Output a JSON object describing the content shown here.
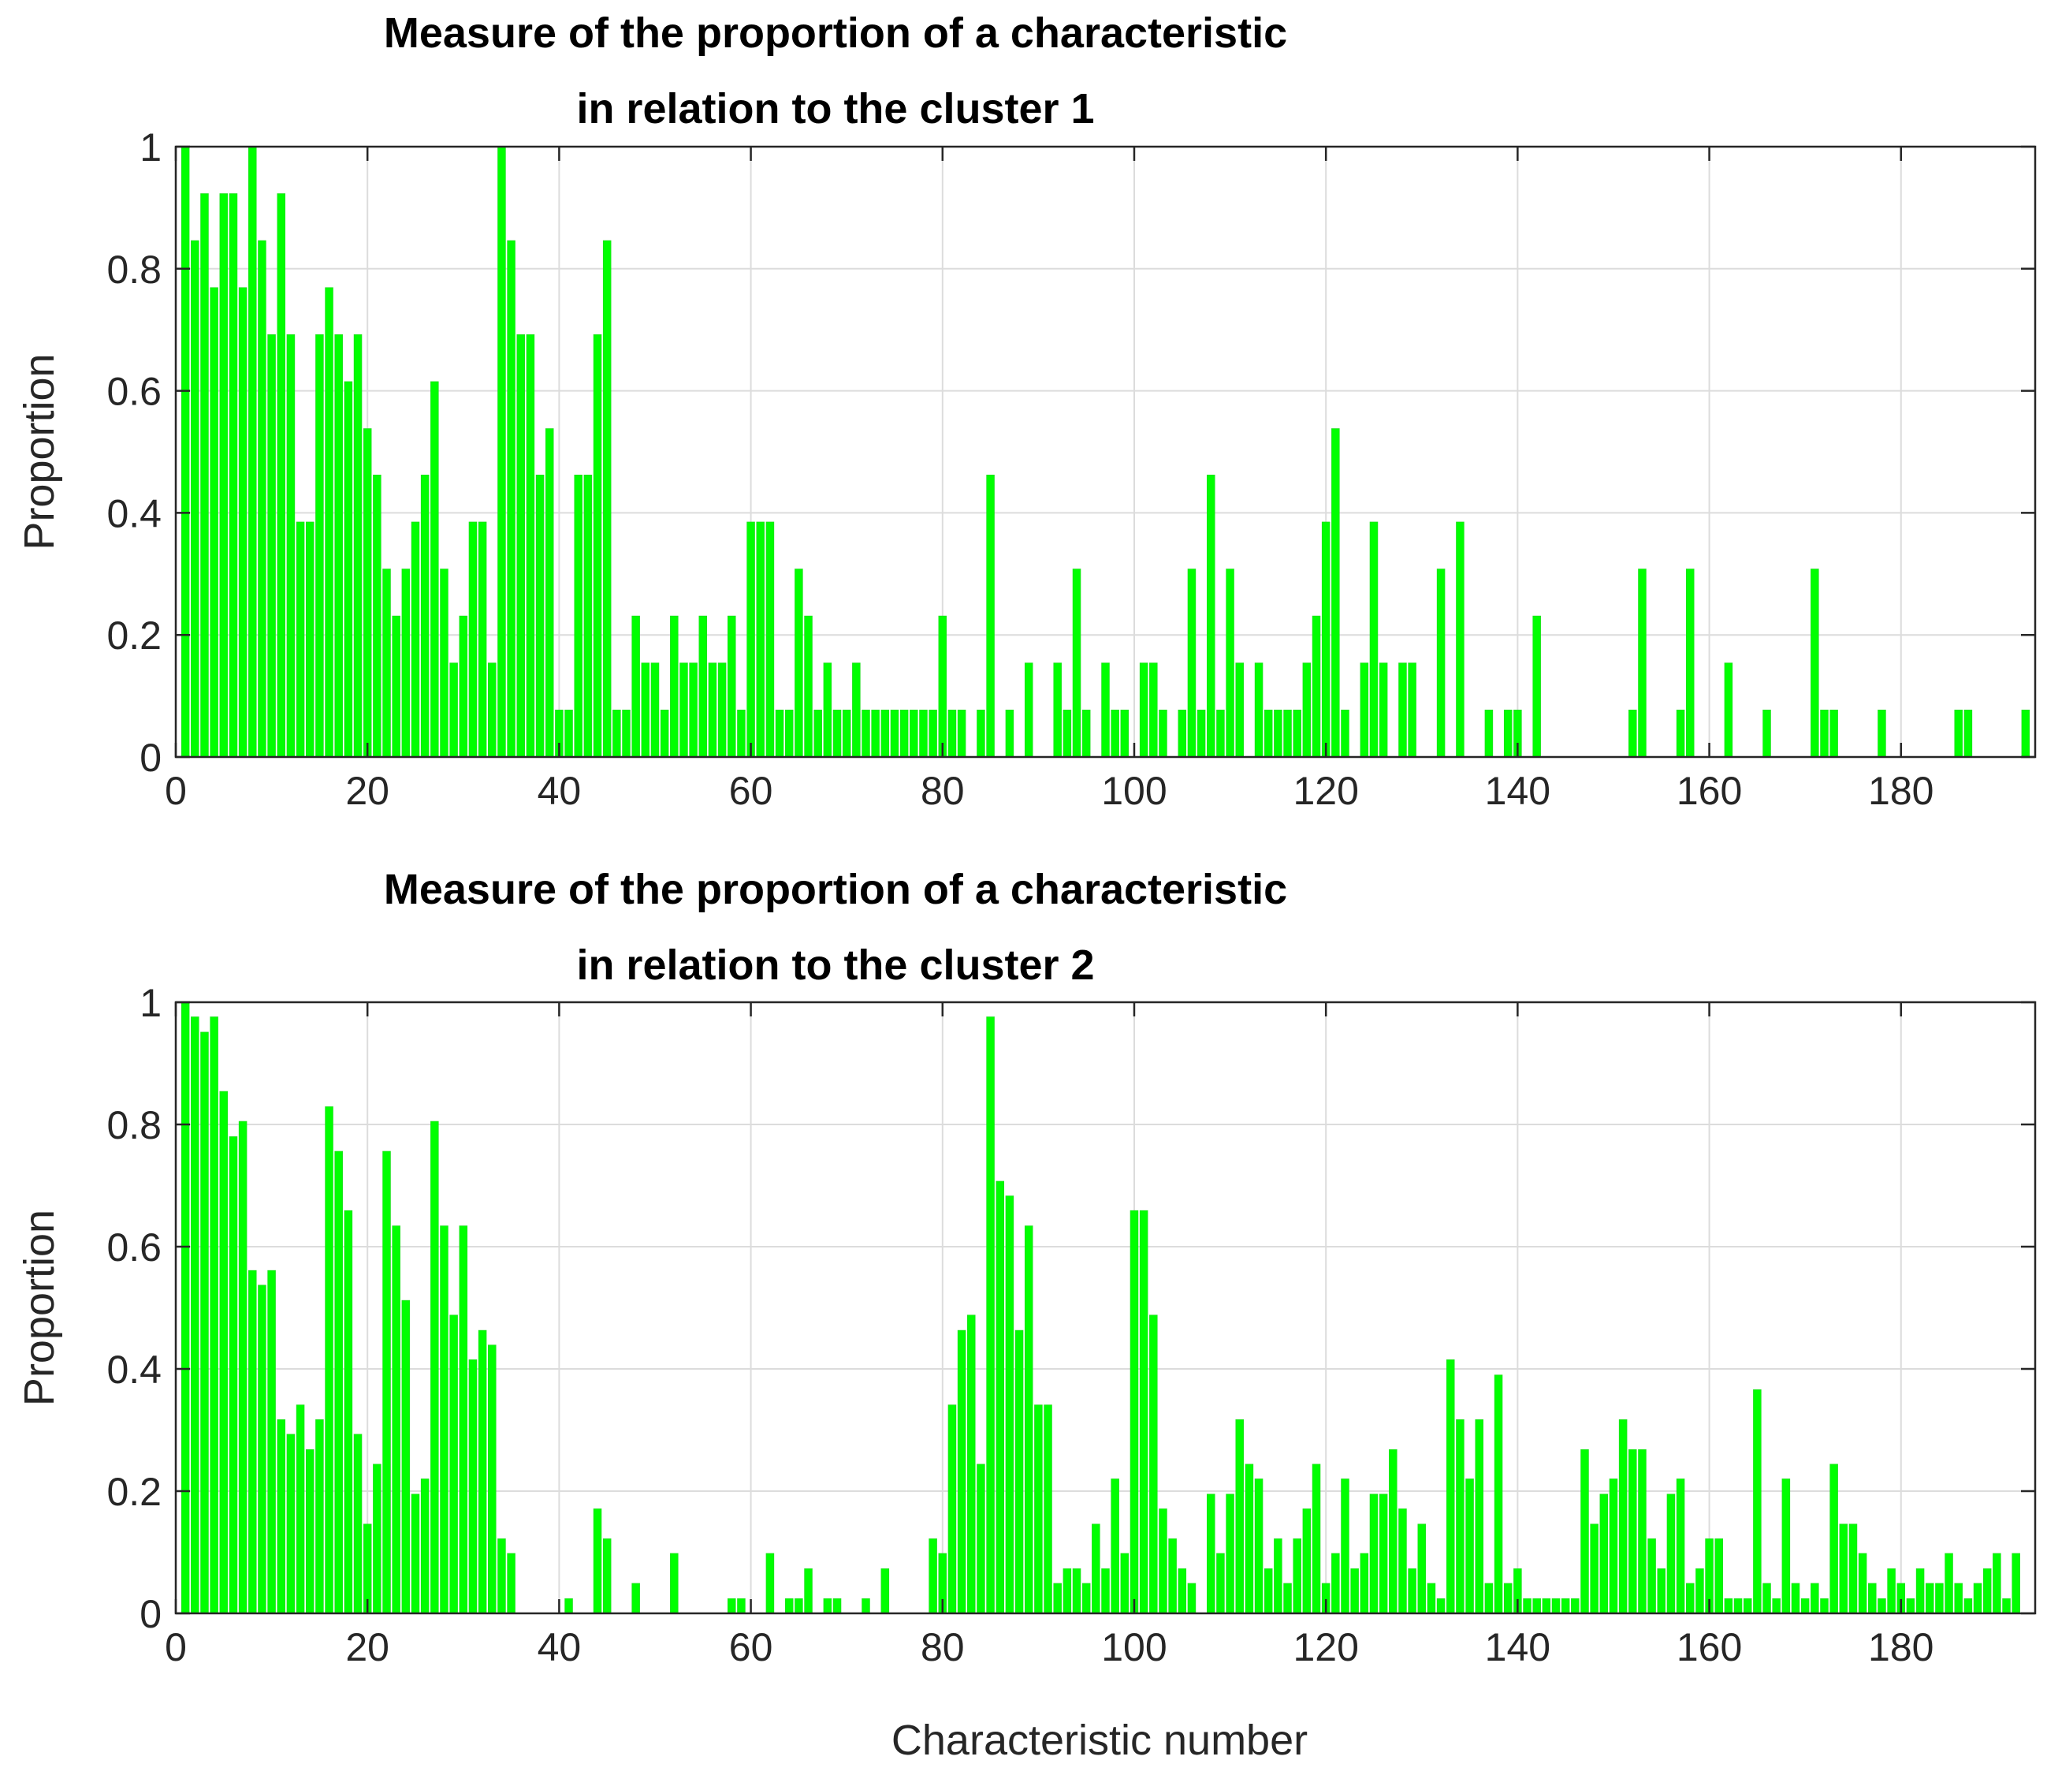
{
  "chart_data": [
    {
      "type": "bar",
      "title": [
        "Measure of the proportion of a characteristic",
        "in relation to the cluster 1"
      ],
      "xlabel": "",
      "ylabel": "Proportion",
      "xlim": [
        0,
        194
      ],
      "ylim": [
        0,
        1
      ],
      "xticks": [
        0,
        20,
        40,
        60,
        80,
        100,
        120,
        140,
        160,
        180
      ],
      "yticks": [
        0,
        0.2,
        0.4,
        0.6,
        0.8,
        1
      ],
      "ytick_labels": [
        "0",
        "0.2",
        "0.4",
        "0.6",
        "0.8",
        "1"
      ],
      "grid": true,
      "color": "#00ff00",
      "values": [
        1,
        0.846,
        0.923,
        0.769,
        0.923,
        0.923,
        0.769,
        1,
        0.846,
        0.692,
        0.923,
        0.692,
        0.385,
        0.385,
        0.692,
        0.769,
        0.692,
        0.615,
        0.692,
        0.538,
        0.462,
        0.308,
        0.231,
        0.308,
        0.385,
        0.462,
        0.615,
        0.308,
        0.154,
        0.231,
        0.385,
        0.385,
        0.154,
        1,
        0.846,
        0.692,
        0.692,
        0.462,
        0.538,
        0.077,
        0.077,
        0.462,
        0.462,
        0.692,
        0.846,
        0.077,
        0.077,
        0.231,
        0.154,
        0.154,
        0.077,
        0.231,
        0.154,
        0.154,
        0.231,
        0.154,
        0.154,
        0.231,
        0.077,
        0.385,
        0.385,
        0.385,
        0.077,
        0.077,
        0.308,
        0.231,
        0.077,
        0.154,
        0.077,
        0.077,
        0.154,
        0.077,
        0.077,
        0.077,
        0.077,
        0.077,
        0.077,
        0.077,
        0.077,
        0.231,
        0.077,
        0.077,
        0,
        0.077,
        0.462,
        0,
        0.077,
        0,
        0.154,
        0,
        0,
        0.154,
        0.077,
        0.308,
        0.077,
        0,
        0.154,
        0.077,
        0.077,
        0,
        0.154,
        0.154,
        0.077,
        0,
        0.077,
        0.308,
        0.077,
        0.462,
        0.077,
        0.308,
        0.154,
        0,
        0.154,
        0.077,
        0.077,
        0.077,
        0.077,
        0.154,
        0.231,
        0.385,
        0.538,
        0.077,
        0,
        0.154,
        0.385,
        0.154,
        0,
        0.154,
        0.154,
        0,
        0,
        0.308,
        0,
        0.385,
        0,
        0,
        0.077,
        0,
        0.077,
        0.077,
        0,
        0.231,
        0,
        0,
        0,
        0,
        0,
        0,
        0,
        0,
        0,
        0.077,
        0.308,
        0,
        0,
        0,
        0.077,
        0.308,
        0,
        0,
        0,
        0.154,
        0,
        0,
        0,
        0.077,
        0,
        0,
        0,
        0,
        0.308,
        0.077,
        0.077,
        0,
        0,
        0,
        0,
        0.077,
        0,
        0,
        0,
        0,
        0,
        0,
        0,
        0.077,
        0.077,
        0,
        0,
        0,
        0,
        0,
        0.077,
        0,
        0
      ]
    },
    {
      "type": "bar",
      "title": [
        "Measure of the proportion of a characteristic",
        "in relation to the cluster 2"
      ],
      "xlabel": "Characteristic number",
      "ylabel": "Proportion",
      "xlim": [
        0,
        194
      ],
      "ylim": [
        0,
        1
      ],
      "xticks": [
        0,
        20,
        40,
        60,
        80,
        100,
        120,
        140,
        160,
        180
      ],
      "yticks": [
        0,
        0.2,
        0.4,
        0.6,
        0.8,
        1
      ],
      "ytick_labels": [
        "0",
        "0.2",
        "0.4",
        "0.6",
        "0.8",
        "1"
      ],
      "grid": true,
      "color": "#00ff00",
      "values": [
        1,
        0.976,
        0.951,
        0.976,
        0.854,
        0.78,
        0.805,
        0.561,
        0.537,
        0.561,
        0.317,
        0.293,
        0.341,
        0.268,
        0.317,
        0.829,
        0.756,
        0.659,
        0.293,
        0.146,
        0.244,
        0.756,
        0.634,
        0.512,
        0.195,
        0.22,
        0.805,
        0.634,
        0.488,
        0.634,
        0.415,
        0.463,
        0.439,
        0.122,
        0.098,
        0,
        0,
        0,
        0,
        0,
        0.024,
        0,
        0,
        0.171,
        0.122,
        0,
        0,
        0.049,
        0,
        0,
        0,
        0.098,
        0,
        0,
        0,
        0,
        0,
        0.024,
        0.024,
        0,
        0,
        0.098,
        0,
        0.024,
        0.024,
        0.073,
        0,
        0.024,
        0.024,
        0,
        0,
        0.024,
        0,
        0.073,
        0,
        0,
        0,
        0,
        0.122,
        0.098,
        0.341,
        0.463,
        0.488,
        0.244,
        0.976,
        0.707,
        0.683,
        0.463,
        0.634,
        0.341,
        0.341,
        0.049,
        0.073,
        0.073,
        0.049,
        0.146,
        0.073,
        0.22,
        0.098,
        0.659,
        0.659,
        0.488,
        0.171,
        0.122,
        0.073,
        0.049,
        0,
        0.195,
        0.098,
        0.195,
        0.317,
        0.244,
        0.22,
        0.073,
        0.122,
        0.049,
        0.122,
        0.171,
        0.244,
        0.049,
        0.098,
        0.22,
        0.073,
        0.098,
        0.195,
        0.195,
        0.268,
        0.171,
        0.073,
        0.146,
        0.049,
        0.024,
        0.415,
        0.317,
        0.22,
        0.317,
        0.049,
        0.39,
        0.049,
        0.073,
        0.024,
        0.024,
        0.024,
        0.024,
        0.024,
        0.024,
        0.268,
        0.146,
        0.195,
        0.22,
        0.317,
        0.268,
        0.268,
        0.122,
        0.073,
        0.195,
        0.22,
        0.049,
        0.073,
        0.122,
        0.122,
        0.024,
        0.024,
        0.024,
        0.366,
        0.049,
        0.024,
        0.22,
        0.049,
        0.024,
        0.049,
        0.024,
        0.244,
        0.146,
        0.146,
        0.098,
        0.049,
        0.024,
        0.073,
        0.049,
        0.024,
        0.073,
        0.049,
        0.049,
        0.098,
        0.049,
        0.024,
        0.049,
        0.073,
        0.098,
        0.024,
        0.098
      ]
    }
  ]
}
